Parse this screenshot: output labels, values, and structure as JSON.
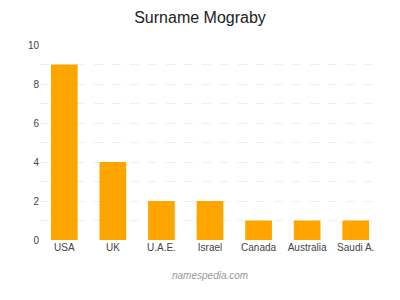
{
  "chart_data": {
    "type": "bar",
    "title": "Surname Mograby",
    "categories": [
      "USA",
      "UK",
      "U.A.E.",
      "Israel",
      "Canada",
      "Australia",
      "Saudi A."
    ],
    "values": [
      9,
      4,
      2,
      2,
      1,
      1,
      1
    ],
    "color": "#FFA500",
    "ylim": [
      0,
      10
    ],
    "yticks": [
      0,
      {
        "value": 1,
        "label": null
      },
      2,
      {
        "value": 3,
        "label": null
      },
      4,
      {
        "value": 5,
        "label": null
      },
      6,
      {
        "value": 7,
        "label": null
      },
      8,
      {
        "value": 9,
        "label": null
      },
      10
    ],
    "grid": true,
    "annotations": [
      "namespedia.com"
    ]
  }
}
